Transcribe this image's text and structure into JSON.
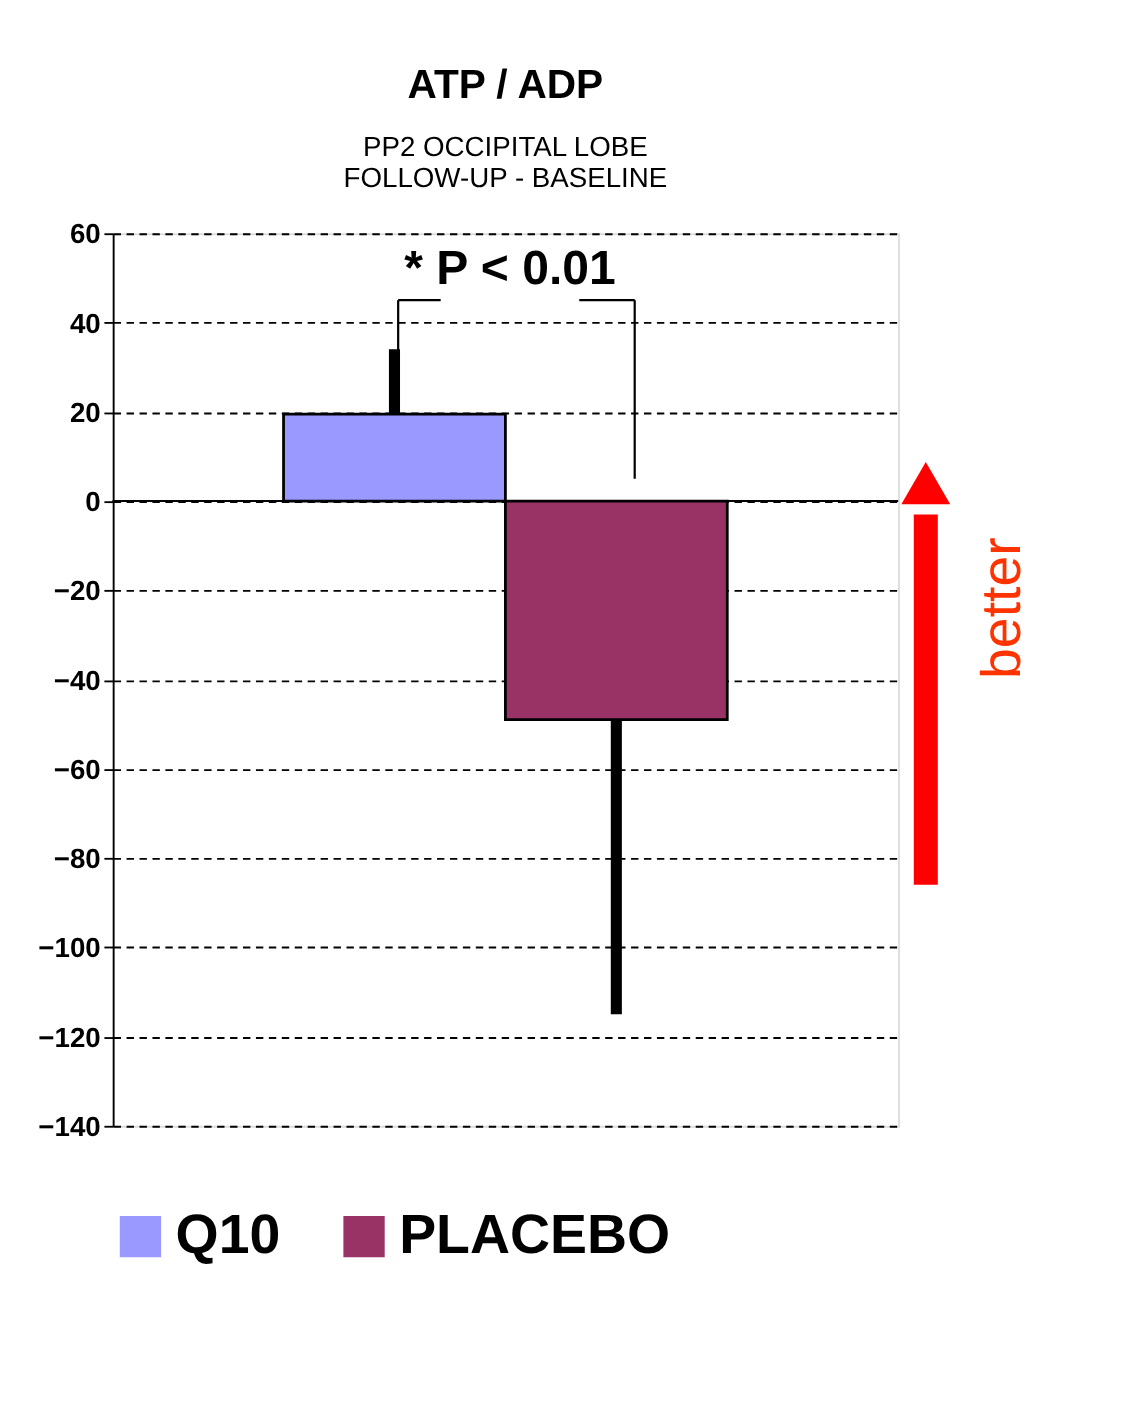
{
  "chart_data": {
    "type": "bar",
    "title": "ATP / ADP",
    "subtitle": "PP2 OCCIPITAL LOBE\nFOLLOW-UP - BASELINE",
    "categories": [
      null,
      null
    ],
    "series": [
      {
        "name": "Q10",
        "color": "#9999ff",
        "values": [
          19.5,
          null
        ],
        "errors": [
          [
            19.5,
            34
          ],
          null
        ]
      },
      {
        "name": "PLACEBO",
        "color": "#993366",
        "values": [
          null,
          -49
        ],
        "errors": [
          null,
          [
            -115,
            -49
          ]
        ]
      }
    ],
    "ylim": [
      -140,
      60
    ],
    "yticks": [
      -140,
      -120,
      -100,
      -80,
      -60,
      -40,
      -20,
      0,
      20,
      40,
      60
    ],
    "grid": "y",
    "legend": "bottom",
    "tick_labels": "y",
    "annotations": [
      "* P < 0.01",
      "better"
    ]
  }
}
